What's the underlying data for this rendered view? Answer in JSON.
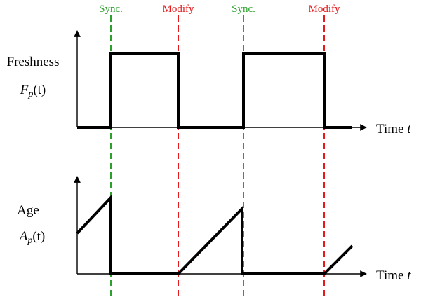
{
  "events": [
    {
      "label": "Sync.",
      "color": "#2ca02c"
    },
    {
      "label": "Modify",
      "color": "#e41a1c"
    },
    {
      "label": "Sync.",
      "color": "#2ca02c"
    },
    {
      "label": "Modify",
      "color": "#e41a1c"
    }
  ],
  "freshness": {
    "title": "Freshness",
    "symbol": "F",
    "subscript": "p",
    "arg": "(t)"
  },
  "age": {
    "title": "Age",
    "symbol": "A",
    "subscript": "p",
    "arg": "(t)"
  },
  "time_axis": {
    "label": "Time",
    "variable": "t"
  },
  "colors": {
    "signal": "#000000",
    "sync": "#2ca02c",
    "modify": "#e41a1c"
  }
}
